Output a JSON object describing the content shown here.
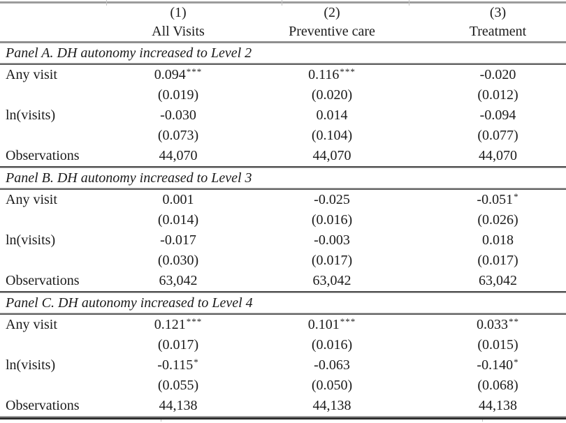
{
  "page": {
    "background": "#ffffff",
    "text_color": "#1b1b1b",
    "rule_gray": "#8f8f8f",
    "rule_dark": "#2f2f2f"
  },
  "table": {
    "columns": [
      {
        "number": "(1)",
        "label": "All Visits"
      },
      {
        "number": "(2)",
        "label": "Preventive care"
      },
      {
        "number": "(3)",
        "label": "Treatment"
      }
    ],
    "panels": [
      {
        "title": "Panel A. DH autonomy increased to Level 2",
        "rows": [
          {
            "label": "Any visit",
            "cells": [
              {
                "value": "0.094",
                "stars": "***"
              },
              {
                "value": "0.116",
                "stars": "***"
              },
              {
                "value": "-0.020",
                "stars": ""
              }
            ]
          },
          {
            "label": "",
            "cells": [
              {
                "value": "(0.019)",
                "stars": ""
              },
              {
                "value": "(0.020)",
                "stars": ""
              },
              {
                "value": "(0.012)",
                "stars": ""
              }
            ]
          },
          {
            "label": "ln(visits)",
            "cells": [
              {
                "value": "-0.030",
                "stars": ""
              },
              {
                "value": "0.014",
                "stars": ""
              },
              {
                "value": "-0.094",
                "stars": ""
              }
            ]
          },
          {
            "label": "",
            "cells": [
              {
                "value": "(0.073)",
                "stars": ""
              },
              {
                "value": "(0.104)",
                "stars": ""
              },
              {
                "value": "(0.077)",
                "stars": ""
              }
            ]
          },
          {
            "label": "Observations",
            "cells": [
              {
                "value": "44,070",
                "stars": ""
              },
              {
                "value": "44,070",
                "stars": ""
              },
              {
                "value": "44,070",
                "stars": ""
              }
            ]
          }
        ]
      },
      {
        "title": "Panel B. DH autonomy increased to Level 3",
        "rows": [
          {
            "label": "Any visit",
            "cells": [
              {
                "value": "0.001",
                "stars": ""
              },
              {
                "value": "-0.025",
                "stars": ""
              },
              {
                "value": "-0.051",
                "stars": "*"
              }
            ]
          },
          {
            "label": "",
            "cells": [
              {
                "value": "(0.014)",
                "stars": ""
              },
              {
                "value": "(0.016)",
                "stars": ""
              },
              {
                "value": "(0.026)",
                "stars": ""
              }
            ]
          },
          {
            "label": "ln(visits)",
            "cells": [
              {
                "value": "-0.017",
                "stars": ""
              },
              {
                "value": "-0.003",
                "stars": ""
              },
              {
                "value": "0.018",
                "stars": ""
              }
            ]
          },
          {
            "label": "",
            "cells": [
              {
                "value": "(0.030)",
                "stars": ""
              },
              {
                "value": "(0.017)",
                "stars": ""
              },
              {
                "value": "(0.017)",
                "stars": ""
              }
            ]
          },
          {
            "label": "Observations",
            "cells": [
              {
                "value": "63,042",
                "stars": ""
              },
              {
                "value": "63,042",
                "stars": ""
              },
              {
                "value": "63,042",
                "stars": ""
              }
            ]
          }
        ]
      },
      {
        "title": "Panel C. DH autonomy increased to Level 4",
        "rows": [
          {
            "label": "Any visit",
            "cells": [
              {
                "value": "0.121",
                "stars": "***"
              },
              {
                "value": "0.101",
                "stars": "***"
              },
              {
                "value": "0.033",
                "stars": "**"
              }
            ]
          },
          {
            "label": "",
            "cells": [
              {
                "value": "(0.017)",
                "stars": ""
              },
              {
                "value": "(0.016)",
                "stars": ""
              },
              {
                "value": "(0.015)",
                "stars": ""
              }
            ]
          },
          {
            "label": "ln(visits)",
            "cells": [
              {
                "value": "-0.115",
                "stars": "*"
              },
              {
                "value": "-0.063",
                "stars": ""
              },
              {
                "value": "-0.140",
                "stars": "*"
              }
            ]
          },
          {
            "label": "",
            "cells": [
              {
                "value": "(0.055)",
                "stars": ""
              },
              {
                "value": "(0.050)",
                "stars": ""
              },
              {
                "value": "(0.068)",
                "stars": ""
              }
            ]
          },
          {
            "label": "Observations",
            "cells": [
              {
                "value": "44,138",
                "stars": ""
              },
              {
                "value": "44,138",
                "stars": ""
              },
              {
                "value": "44,138",
                "stars": ""
              }
            ]
          }
        ]
      }
    ]
  }
}
